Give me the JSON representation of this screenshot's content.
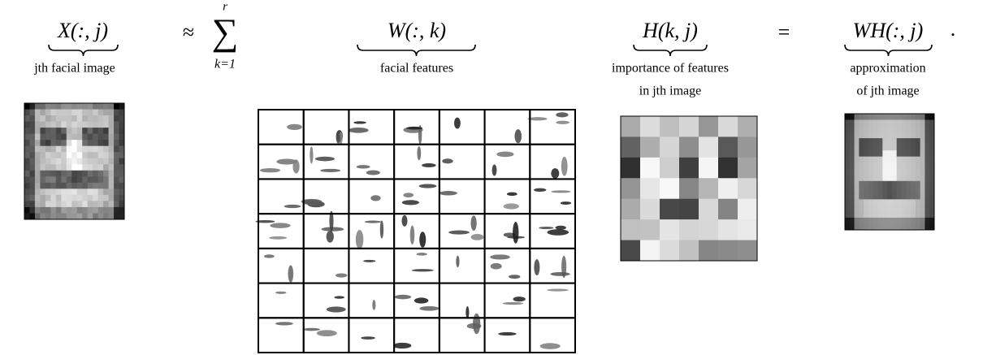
{
  "equation": {
    "x_term": "X(:, j)",
    "approx": "≈",
    "sum": "∑",
    "sum_upper": "r",
    "sum_lower": "k=1",
    "w_term": "W(:, k)",
    "h_term": "H(k, j)",
    "equals": "=",
    "wh_term": "WH(:, j)",
    "period": "."
  },
  "captions": {
    "x": "jth facial image",
    "w": "facial features",
    "h": [
      "importance of features",
      "in jth image"
    ],
    "wh": [
      "approximation",
      "of jth image"
    ]
  }
}
